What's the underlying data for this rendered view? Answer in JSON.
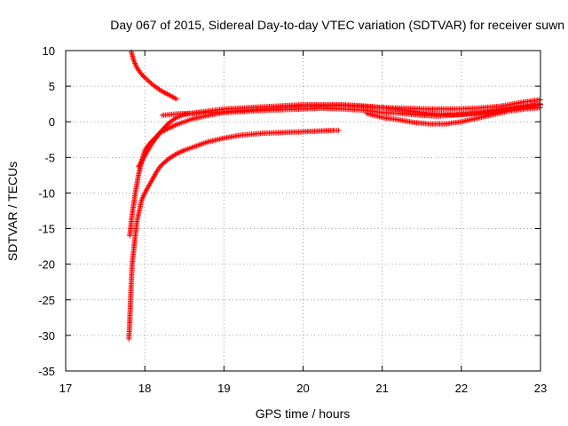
{
  "chart_data": {
    "type": "scatter",
    "title": "Day 067 of 2015, Sidereal Day-to-day VTEC variation (SDTVAR) for receiver suwn",
    "xlabel": "GPS time / hours",
    "ylabel": "SDTVAR / TECUs",
    "xlim": [
      17,
      23
    ],
    "ylim": [
      -35,
      10
    ],
    "xticks": [
      "17",
      "18",
      "19",
      "20",
      "21",
      "22",
      "23"
    ],
    "yticks": [
      "-35",
      "-30",
      "-25",
      "-20",
      "-15",
      "-10",
      "-5",
      "0",
      "5",
      "10"
    ],
    "grid": true,
    "marker": "+",
    "color": "#ff0000",
    "series": [
      {
        "x": [
          17.83,
          17.86,
          17.9,
          17.95,
          18.0,
          18.05,
          18.1,
          18.15,
          18.2,
          18.25,
          18.3,
          18.35,
          18.4
        ],
        "y": [
          9.8,
          8.6,
          7.6,
          6.8,
          6.2,
          5.7,
          5.2,
          4.8,
          4.4,
          4.1,
          3.8,
          3.5,
          3.2
        ]
      },
      {
        "x": [
          17.81,
          17.84,
          17.88,
          17.92,
          17.96,
          18.0,
          18.05,
          18.1,
          18.15,
          18.2,
          18.3,
          18.4,
          18.5,
          18.6,
          18.8,
          19.0,
          19.5,
          20.0,
          20.2,
          20.5,
          20.8,
          21.0,
          21.2,
          21.5,
          21.7,
          22.0,
          22.3,
          22.6,
          22.9,
          23.0
        ],
        "y": [
          -16,
          -13,
          -10,
          -7.5,
          -5.5,
          -4.0,
          -3.2,
          -2.6,
          -2.0,
          -1.5,
          -0.9,
          -0.4,
          0.0,
          0.4,
          0.9,
          1.3,
          1.6,
          1.8,
          1.9,
          1.8,
          1.6,
          1.3,
          1.2,
          0.9,
          0.8,
          1.0,
          1.3,
          1.8,
          2.2,
          2.4
        ]
      },
      {
        "x": [
          17.92,
          17.96,
          18.0,
          18.05,
          18.1,
          18.15,
          18.2,
          18.3,
          18.4,
          18.5,
          18.6,
          18.8,
          19.0,
          19.5,
          20.0,
          20.5,
          21.0,
          21.3,
          21.6,
          21.9,
          22.2,
          22.5,
          22.8,
          23.0
        ],
        "y": [
          -6.3,
          -5.6,
          -4.8,
          -3.8,
          -2.9,
          -2.2,
          -1.4,
          -0.2,
          0.6,
          1.0,
          1.2,
          1.3,
          1.4,
          1.8,
          2.2,
          2.3,
          2.0,
          1.6,
          1.2,
          1.0,
          1.2,
          1.7,
          2.2,
          2.5
        ]
      },
      {
        "x": [
          18.22,
          18.3,
          18.4,
          18.6,
          18.8,
          19.0,
          19.5,
          20.0,
          20.5,
          20.8,
          21.0,
          21.3,
          21.6,
          21.9,
          22.2,
          22.5,
          22.8,
          23.0
        ],
        "y": [
          0.9,
          1.0,
          1.1,
          1.2,
          1.5,
          1.8,
          2.1,
          2.4,
          2.4,
          2.2,
          2.0,
          1.9,
          1.8,
          1.8,
          1.9,
          2.2,
          2.8,
          3.1
        ]
      },
      {
        "x": [
          20.8,
          21.0,
          21.2,
          21.4,
          21.6,
          21.8,
          22.0,
          22.2,
          22.4,
          22.6,
          22.8,
          23.0
        ],
        "y": [
          1.2,
          0.6,
          0.3,
          -0.1,
          -0.3,
          -0.3,
          0.0,
          0.5,
          1.0,
          1.5,
          1.8,
          2.0
        ]
      },
      {
        "x": [
          17.8,
          17.81,
          17.82,
          17.83,
          17.84,
          17.86,
          17.88,
          17.9,
          17.93,
          17.96,
          18.0,
          18.05,
          18.1,
          18.15,
          18.2,
          18.3,
          18.4,
          18.5,
          18.6,
          18.8,
          19.0,
          19.2,
          19.5,
          20.0,
          20.2,
          20.4,
          20.45
        ],
        "y": [
          -30.5,
          -28,
          -25,
          -22.5,
          -20,
          -18,
          -16,
          -14,
          -12.5,
          -11,
          -10,
          -9,
          -8,
          -7,
          -6.2,
          -5.2,
          -4.5,
          -4.0,
          -3.6,
          -2.8,
          -2.3,
          -1.9,
          -1.6,
          -1.4,
          -1.3,
          -1.2,
          -1.2
        ]
      }
    ]
  }
}
